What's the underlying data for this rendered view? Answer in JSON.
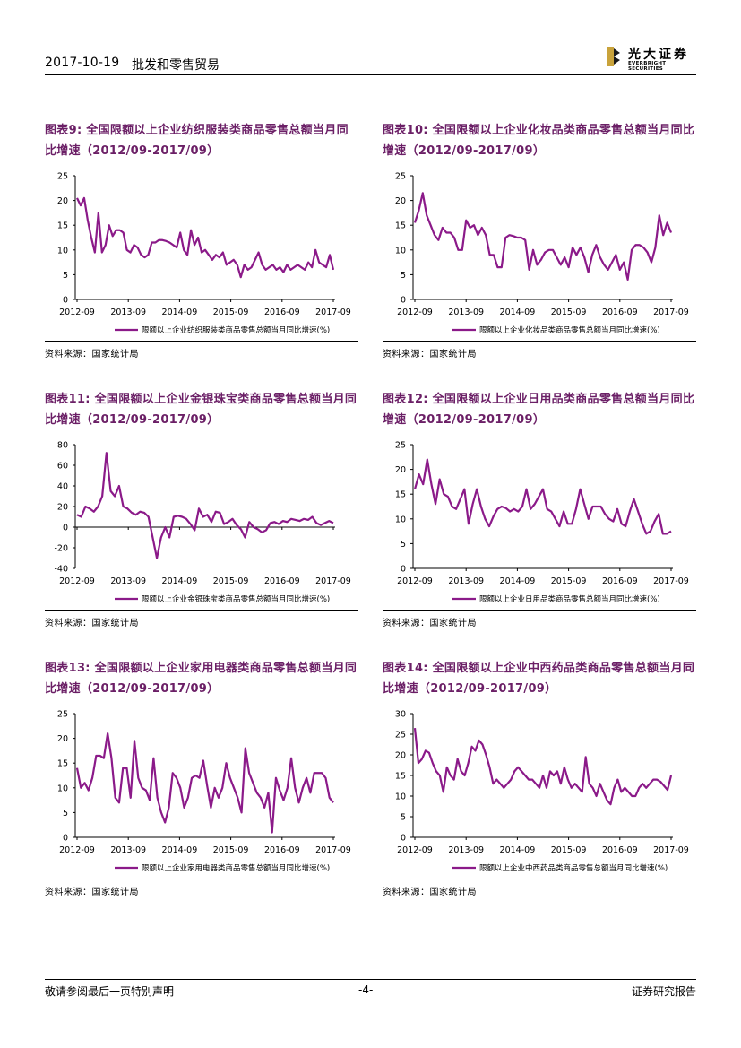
{
  "header": {
    "date": "2017-10-19",
    "topic": "批发和零售贸易",
    "logo_cn": "光大证券",
    "logo_en": "EVERBRIGHT SECURITIES"
  },
  "footer": {
    "disclaimer": "敬请参阅最后一页特别声明",
    "page": "-4-",
    "doc_type": "证券研究报告"
  },
  "colors": {
    "series": "#8B1A89",
    "title": "#6b1f66",
    "logo_gold": "#c9a33b"
  },
  "x_ticks": [
    "2012-09",
    "2013-09",
    "2014-09",
    "2015-09",
    "2016-09",
    "2017-09"
  ],
  "chart_data": [
    {
      "type": "line",
      "title": "图表9: 全国限额以上企业纺织服装类商品零售总额当月同比增速（2012/09-2017/09）",
      "ylim": [
        0,
        25
      ],
      "yticks": [
        0,
        5,
        10,
        15,
        20,
        25
      ],
      "xlabels": [
        "2012-09",
        "2013-09",
        "2014-09",
        "2015-09",
        "2016-09",
        "2017-09"
      ],
      "source": "资料来源：国家统计局",
      "series": [
        {
          "name": "限额以上企业纺织服装类商品零售总额当月同比增速(%)",
          "values": [
            20.5,
            19,
            20.5,
            16,
            12.5,
            9.5,
            17.5,
            9.5,
            11,
            15,
            12.8,
            14,
            14,
            13.5,
            10,
            9.5,
            11,
            10.5,
            9,
            8.5,
            9,
            11.5,
            11.5,
            12,
            12,
            11.8,
            11.5,
            11,
            10.5,
            13.5,
            10,
            9,
            14,
            11,
            12.5,
            9.5,
            10,
            9,
            8,
            9,
            8.5,
            9.5,
            7,
            7.5,
            8,
            7,
            4.5,
            7,
            6,
            6.5,
            8,
            9.5,
            7,
            6,
            6.5,
            7,
            6,
            6.5,
            5.5,
            7,
            6,
            6.5,
            7,
            6.5,
            6,
            7.5,
            6.5,
            10,
            7.5,
            7,
            6.5,
            9,
            6
          ]
        }
      ]
    },
    {
      "type": "line",
      "title": "图表10: 全国限额以上企业化妆品类商品零售总额当月同比增速（2012/09-2017/09）",
      "ylim": [
        0,
        25
      ],
      "yticks": [
        0,
        5,
        10,
        15,
        20,
        25
      ],
      "xlabels": [
        "2012-09",
        "2013-09",
        "2014-09",
        "2015-09",
        "2016-09",
        "2017-09"
      ],
      "source": "资料来源：国家统计局",
      "series": [
        {
          "name": "限额以上企业化妆品类商品零售总额当月同比增速(%)",
          "values": [
            15.5,
            18,
            21.5,
            17,
            15,
            13,
            12,
            14.5,
            13.5,
            13.5,
            12.5,
            10,
            10,
            16,
            14.5,
            15,
            13,
            14.5,
            13,
            9,
            9,
            6.5,
            6.5,
            12.5,
            13,
            12.8,
            12.5,
            12.5,
            12,
            6,
            10,
            7,
            8,
            9.5,
            10,
            10,
            8.5,
            7,
            8.5,
            6.5,
            10.5,
            9,
            10.5,
            8.5,
            5.5,
            9,
            11,
            8.5,
            7,
            6,
            7.5,
            9,
            6,
            7.5,
            4,
            10,
            11,
            11,
            10.5,
            9.5,
            7.5,
            10.5,
            17,
            13,
            15.5,
            13.5
          ]
        }
      ]
    },
    {
      "type": "line",
      "title": "图表11: 全国限额以上企业金银珠宝类商品零售总额当月同比增速（2012/09-2017/09）",
      "ylim": [
        -40,
        80
      ],
      "yticks": [
        -40,
        -20,
        0,
        20,
        40,
        60,
        80
      ],
      "xlabels": [
        "2012-09",
        "2013-09",
        "2014-09",
        "2015-09",
        "2016-09",
        "2017-09"
      ],
      "source": "资料来源：国家统计局",
      "series": [
        {
          "name": "限额以上企业金银珠宝类商品零售总额当月同比增速(%)",
          "values": [
            12,
            10,
            20,
            18,
            15,
            20,
            30,
            72,
            35,
            30,
            40,
            20,
            18,
            14,
            12,
            15,
            14,
            10,
            -10,
            -30,
            -10,
            0,
            -10,
            10,
            11,
            10,
            8,
            3,
            -3,
            18,
            10,
            12,
            5,
            15,
            14,
            3,
            5,
            8,
            2,
            -2,
            -10,
            5,
            0,
            -2,
            -5,
            -3,
            4,
            5,
            3,
            6,
            5,
            8,
            7,
            6,
            8,
            7,
            10,
            4,
            2,
            4,
            6,
            4
          ]
        }
      ]
    },
    {
      "type": "line",
      "title": "图表12: 全国限额以上企业日用品类商品零售总额当月同比增速（2012/09-2017/09）",
      "ylim": [
        0,
        25
      ],
      "yticks": [
        0,
        5,
        10,
        15,
        20,
        25
      ],
      "xlabels": [
        "2012-09",
        "2013-09",
        "2014-09",
        "2015-09",
        "2016-09",
        "2017-09"
      ],
      "source": "资料来源：国家统计局",
      "series": [
        {
          "name": "限额以上企业日用品类商品零售总额当月同比增速(%)",
          "values": [
            16,
            19,
            17,
            22,
            17,
            13,
            18,
            15,
            14.5,
            12.5,
            12,
            14,
            16,
            9,
            13,
            16,
            12.5,
            10,
            8.5,
            10.5,
            12,
            12.5,
            12.2,
            11.5,
            12,
            11.5,
            12.5,
            16,
            12,
            13,
            14.5,
            16,
            12,
            11.5,
            10,
            8.5,
            11.5,
            9,
            9,
            12,
            16,
            13,
            10,
            12.5,
            12.5,
            12.5,
            11,
            10,
            9.5,
            12,
            9,
            8.5,
            11.5,
            14,
            11.5,
            9,
            7,
            7.5,
            9.5,
            11,
            7,
            7,
            7.5
          ]
        }
      ]
    },
    {
      "type": "line",
      "title": "图表13: 全国限额以上企业家用电器类商品零售总额当月同比增速（2012/09-2017/09）",
      "ylim": [
        0,
        25
      ],
      "yticks": [
        0,
        5,
        10,
        15,
        20,
        25
      ],
      "xlabels": [
        "2012-09",
        "2013-09",
        "2014-09",
        "2015-09",
        "2016-09",
        "2017-09"
      ],
      "source": "资料来源：国家统计局",
      "series": [
        {
          "name": "限额以上企业家用电器类商品零售总额当月同比增速(%)",
          "values": [
            14,
            10,
            11,
            9.5,
            12,
            16.5,
            16.5,
            16,
            21,
            16,
            8,
            7,
            14,
            14,
            8,
            19.5,
            12,
            10,
            9.5,
            7.5,
            16,
            8,
            5,
            3,
            6,
            13,
            12,
            10,
            6,
            8,
            12,
            12.5,
            12,
            15.5,
            10.5,
            6,
            10,
            8,
            10,
            15,
            12,
            10,
            8,
            5,
            18,
            13,
            11,
            9,
            8,
            6,
            9,
            1,
            12,
            9.5,
            7.5,
            10,
            16,
            10,
            7,
            10,
            12,
            9,
            13,
            13,
            13,
            12,
            8,
            7
          ]
        }
      ]
    },
    {
      "type": "line",
      "title": "图表14: 全国限额以上企业中西药品类商品零售总额当月同比增速（2012/09-2017/09）",
      "ylim": [
        0,
        30
      ],
      "yticks": [
        0,
        5,
        10,
        15,
        20,
        25,
        30
      ],
      "xlabels": [
        "2012-09",
        "2013-09",
        "2014-09",
        "2015-09",
        "2016-09",
        "2017-09"
      ],
      "source": "资料来源：国家统计局",
      "series": [
        {
          "name": "限额以上企业中西药品类商品零售总额当月同比增速(%)",
          "values": [
            26.5,
            18,
            19,
            21,
            20.5,
            18,
            16,
            15,
            11,
            17,
            15,
            14,
            19,
            16,
            15,
            18,
            22,
            21,
            23.5,
            22.5,
            20,
            17,
            13,
            14,
            13,
            12,
            13,
            14,
            16,
            17,
            16,
            15,
            14,
            14,
            13,
            12,
            15,
            12,
            16,
            15,
            16,
            13,
            17,
            14,
            12,
            13,
            12,
            11,
            19.5,
            13,
            12,
            10,
            13,
            11,
            9,
            8,
            12,
            14,
            11,
            12,
            11,
            10,
            10,
            12,
            13,
            12,
            13,
            14,
            14,
            13.5,
            12.5,
            11.5,
            15
          ]
        }
      ]
    }
  ]
}
